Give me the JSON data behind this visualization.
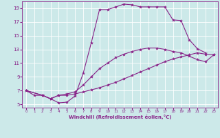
{
  "xlabel": "Windchill (Refroidissement éolien,°C)",
  "xlim": [
    -0.5,
    23.5
  ],
  "ylim": [
    4.5,
    20.0
  ],
  "yticks": [
    5,
    7,
    9,
    11,
    13,
    15,
    17,
    19
  ],
  "xticks": [
    0,
    1,
    2,
    3,
    4,
    5,
    6,
    7,
    8,
    9,
    10,
    11,
    12,
    13,
    14,
    15,
    16,
    17,
    18,
    19,
    20,
    21,
    22,
    23
  ],
  "bg_color": "#cce9e9",
  "grid_color": "#aadddd",
  "line_color": "#882288",
  "line_width": 0.8,
  "marker": "*",
  "marker_size": 3,
  "series": [
    {
      "x": [
        0,
        1,
        2,
        3,
        4,
        5,
        6,
        7,
        8,
        9,
        10,
        11,
        12,
        13,
        14,
        15,
        16,
        17,
        18,
        19,
        20,
        21,
        22
      ],
      "y": [
        7.0,
        6.3,
        6.3,
        5.8,
        5.2,
        5.3,
        6.2,
        9.5,
        14.0,
        18.8,
        18.8,
        19.2,
        19.6,
        19.5,
        19.2,
        19.2,
        19.2,
        19.2,
        17.3,
        17.2,
        14.4,
        13.1,
        12.5
      ]
    },
    {
      "x": [
        0,
        2,
        3,
        4,
        5,
        6,
        7,
        8,
        9,
        10,
        11,
        12,
        13,
        14,
        15,
        16,
        17,
        18,
        19,
        20,
        21,
        22,
        23
      ],
      "y": [
        7.0,
        6.3,
        5.8,
        6.3,
        6.3,
        6.5,
        6.8,
        7.1,
        7.4,
        7.8,
        8.2,
        8.7,
        9.2,
        9.7,
        10.2,
        10.7,
        11.2,
        11.6,
        11.9,
        12.2,
        12.5,
        12.3,
        12.2
      ]
    },
    {
      "x": [
        0,
        2,
        3,
        4,
        5,
        6,
        7,
        8,
        9,
        10,
        11,
        12,
        13,
        14,
        15,
        16,
        17,
        18,
        19,
        20,
        21,
        22,
        23
      ],
      "y": [
        7.0,
        6.3,
        5.8,
        6.3,
        6.5,
        6.8,
        7.8,
        9.0,
        10.2,
        11.0,
        11.8,
        12.3,
        12.7,
        13.0,
        13.2,
        13.2,
        13.0,
        12.7,
        12.5,
        12.0,
        11.5,
        11.2,
        12.2
      ]
    }
  ]
}
